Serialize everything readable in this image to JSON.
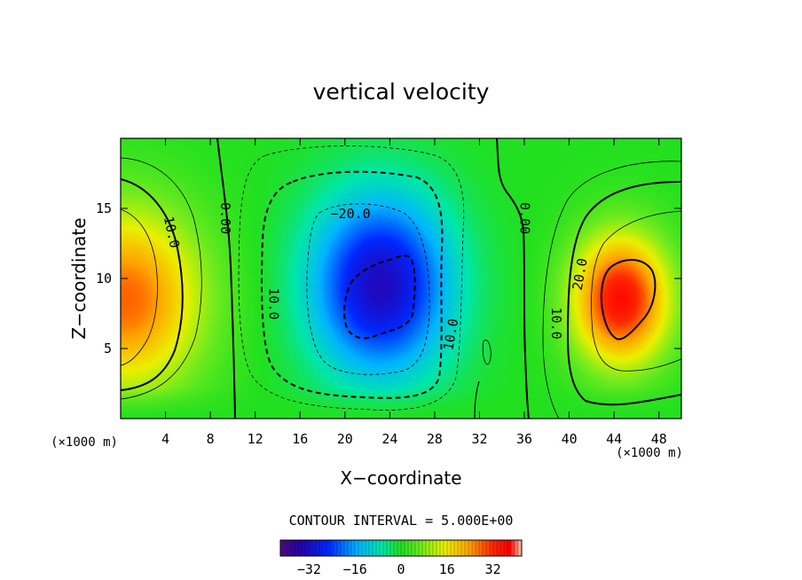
{
  "chart_data": {
    "type": "heatmap",
    "subtype": "filled-contour",
    "title": "vertical velocity",
    "xlabel": "X−coordinate",
    "ylabel": "Z−coordinate",
    "x_unit_label": "(×1000 m)",
    "z_unit_label": "(×1000 m)",
    "xlim": [
      0,
      50
    ],
    "ylim": [
      0,
      20
    ],
    "x_ticks": [
      4,
      8,
      12,
      16,
      20,
      24,
      28,
      32,
      36,
      40,
      44,
      48
    ],
    "y_ticks": [
      5,
      10,
      15
    ],
    "contour_interval_text": "CONTOUR INTERVAL = 5.000E+00",
    "contour_interval": 5,
    "contour_labels": [
      {
        "value": "10.0",
        "x": 4.5,
        "z": 13.3,
        "rot": 78
      },
      {
        "value": "0.00",
        "x": 9.3,
        "z": 14.3,
        "rot": 90
      },
      {
        "value": "−20.0",
        "x": 20.5,
        "z": 14.6,
        "rot": 0
      },
      {
        "value": "10.0",
        "x": 13.6,
        "z": 8.2,
        "rot": 90
      },
      {
        "value": "10.0",
        "x": 29.5,
        "z": 6.0,
        "rot": -80
      },
      {
        "value": "0.00",
        "x": 36.0,
        "z": 14.3,
        "rot": 90
      },
      {
        "value": "20.0",
        "x": 41.0,
        "z": 10.3,
        "rot": -80
      },
      {
        "value": "10.0",
        "x": 38.8,
        "z": 6.8,
        "rot": 90
      }
    ],
    "field_centers": [
      {
        "label": "downdraft core",
        "x": 23.2,
        "z": 9.5,
        "value": -33
      },
      {
        "label": "updraft core right",
        "x": 44.6,
        "z": 8.5,
        "value": 36
      },
      {
        "label": "updraft core left",
        "x": 0.5,
        "z": 8.5,
        "value": 28
      }
    ],
    "colorbar": {
      "min": -42,
      "max": 42,
      "tick_values": [
        -32,
        -16,
        0,
        16,
        32
      ],
      "tick_labels": [
        "−32",
        "−16",
        "0",
        "16",
        "32"
      ]
    },
    "colors": {
      "background_field": "#22e01e",
      "min_color": "#4b0f7a",
      "max_color": "#ff0000"
    }
  }
}
